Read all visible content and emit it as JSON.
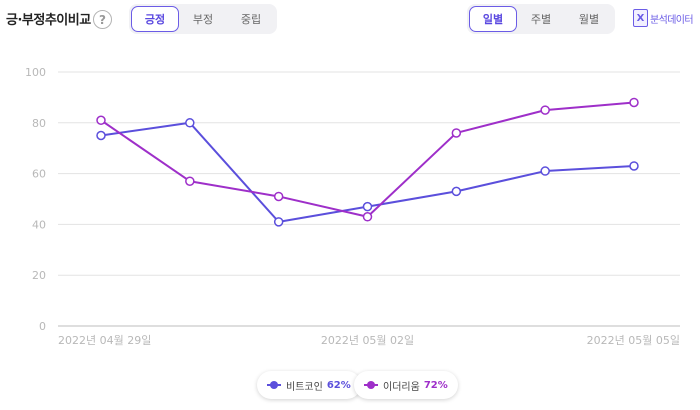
{
  "header": {
    "title": "긍·부정추이비교",
    "help_icon": "?",
    "sentiment_tabs": [
      {
        "label": "긍정",
        "active": true
      },
      {
        "label": "부정",
        "active": false
      },
      {
        "label": "중립",
        "active": false
      }
    ],
    "period_tabs": [
      {
        "label": "일별",
        "active": true
      },
      {
        "label": "주별",
        "active": false
      },
      {
        "label": "월별",
        "active": false
      }
    ],
    "export_icon": "X",
    "export_label": "분석데이터"
  },
  "legend": [
    {
      "name": "비트코인",
      "percent": "62%",
      "color": "#5b4fdc"
    },
    {
      "name": "이더리움",
      "percent": "72%",
      "color": "#9e2fc9"
    }
  ],
  "chart_data": {
    "type": "line",
    "x": [
      "2022-04-29",
      "2022-04-30",
      "2022-05-01",
      "2022-05-02",
      "2022-05-03",
      "2022-05-04",
      "2022-05-05"
    ],
    "xtick_labels": [
      "2022년 04월 29일",
      "2022년 05월 02일",
      "2022년 05월 05일"
    ],
    "xtick_indices": [
      0,
      3,
      6
    ],
    "ylim": [
      0,
      100
    ],
    "yticks": [
      0,
      20,
      40,
      60,
      80,
      100
    ],
    "grid": true,
    "series": [
      {
        "name": "비트코인",
        "color": "#5b4fdc",
        "values": [
          75,
          80,
          41,
          47,
          53,
          61,
          63
        ]
      },
      {
        "name": "이더리움",
        "color": "#9e2fc9",
        "values": [
          81,
          57,
          51,
          43,
          76,
          85,
          88
        ]
      }
    ]
  }
}
